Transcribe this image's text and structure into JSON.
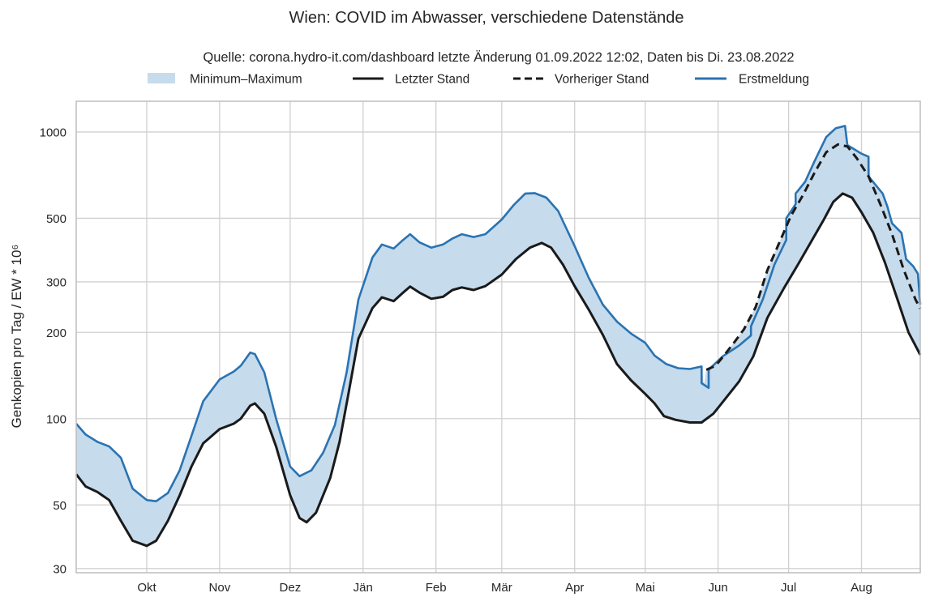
{
  "chart_data": {
    "type": "line",
    "title": "Wien: COVID im Abwasser, verschiedene Datenstände",
    "subtitle": "Quelle: corona.hydro-it.com/dashboard letzte Änderung 01.09.2022 12:02, Daten bis Di. 23.08.2022",
    "ylabel": "Genkopien pro Tag / EW * 10⁶",
    "xlabel": "",
    "y_scale": "log",
    "ylim": [
      29,
      1280
    ],
    "y_ticks": [
      30,
      50,
      100,
      200,
      300,
      500,
      1000
    ],
    "y_tick_labels": [
      "30",
      "50",
      "100",
      "200",
      "300",
      "500",
      "1000"
    ],
    "x_range": [
      "2021-09-01",
      "2022-08-26"
    ],
    "x_ticks": [
      {
        "date": "2021-10-01",
        "label": "Okt"
      },
      {
        "date": "2021-11-01",
        "label": "Nov"
      },
      {
        "date": "2021-12-01",
        "label": "Dez"
      },
      {
        "date": "2022-01-01",
        "label": "Jän"
      },
      {
        "date": "2022-02-01",
        "label": "Feb"
      },
      {
        "date": "2022-03-01",
        "label": "Mär"
      },
      {
        "date": "2022-04-01",
        "label": "Apr"
      },
      {
        "date": "2022-05-01",
        "label": "Mai"
      },
      {
        "date": "2022-06-01",
        "label": "Jun"
      },
      {
        "date": "2022-07-01",
        "label": "Jul"
      },
      {
        "date": "2022-08-01",
        "label": "Aug"
      }
    ],
    "grid": true,
    "legend_position": "top-center",
    "colors": {
      "band": "#c6dbec",
      "latest": "#1a1a1a",
      "previous": "#1a1a1a",
      "first": "#2a73b2"
    },
    "legend": [
      {
        "key": "band",
        "label": "Minimum–Maximum"
      },
      {
        "key": "latest",
        "label": "Letzter Stand"
      },
      {
        "key": "previous",
        "label": "Vorheriger Stand"
      },
      {
        "key": "first",
        "label": "Erstmeldung"
      }
    ],
    "series": [
      {
        "name": "Letzter Stand",
        "key": "latest",
        "style": "solid",
        "points": [
          [
            "2021-09-01",
            64
          ],
          [
            "2021-09-05",
            58
          ],
          [
            "2021-09-10",
            55.5
          ],
          [
            "2021-09-15",
            52
          ],
          [
            "2021-09-20",
            44
          ],
          [
            "2021-09-25",
            37.5
          ],
          [
            "2021-10-01",
            36
          ],
          [
            "2021-10-05",
            37.5
          ],
          [
            "2021-10-10",
            44
          ],
          [
            "2021-10-15",
            54
          ],
          [
            "2021-10-20",
            68
          ],
          [
            "2021-10-25",
            82
          ],
          [
            "2021-11-01",
            92
          ],
          [
            "2021-11-07",
            96
          ],
          [
            "2021-11-10",
            100
          ],
          [
            "2021-11-14",
            111
          ],
          [
            "2021-11-16",
            113
          ],
          [
            "2021-11-20",
            104
          ],
          [
            "2021-11-25",
            80
          ],
          [
            "2021-12-01",
            54
          ],
          [
            "2021-12-05",
            45
          ],
          [
            "2021-12-08",
            43.5
          ],
          [
            "2021-12-12",
            47
          ],
          [
            "2021-12-18",
            62
          ],
          [
            "2021-12-22",
            83
          ],
          [
            "2021-12-26",
            125
          ],
          [
            "2021-12-30",
            190
          ],
          [
            "2022-01-05",
            243
          ],
          [
            "2022-01-09",
            265
          ],
          [
            "2022-01-14",
            257
          ],
          [
            "2022-01-18",
            275
          ],
          [
            "2022-01-21",
            289
          ],
          [
            "2022-01-25",
            275
          ],
          [
            "2022-01-30",
            262
          ],
          [
            "2022-02-04",
            266
          ],
          [
            "2022-02-08",
            281
          ],
          [
            "2022-02-12",
            287
          ],
          [
            "2022-02-17",
            281
          ],
          [
            "2022-02-22",
            290
          ],
          [
            "2022-03-01",
            318
          ],
          [
            "2022-03-07",
            360
          ],
          [
            "2022-03-13",
            395
          ],
          [
            "2022-03-18",
            410
          ],
          [
            "2022-03-22",
            395
          ],
          [
            "2022-03-27",
            345
          ],
          [
            "2022-04-01",
            290
          ],
          [
            "2022-04-07",
            240
          ],
          [
            "2022-04-13",
            196
          ],
          [
            "2022-04-19",
            155
          ],
          [
            "2022-04-25",
            136
          ],
          [
            "2022-05-01",
            122
          ],
          [
            "2022-05-05",
            113
          ],
          [
            "2022-05-09",
            102
          ],
          [
            "2022-05-14",
            99
          ],
          [
            "2022-05-20",
            97
          ],
          [
            "2022-05-25",
            97
          ],
          [
            "2022-05-30",
            104
          ],
          [
            "2022-06-04",
            117
          ],
          [
            "2022-06-10",
            135
          ],
          [
            "2022-06-16",
            165
          ],
          [
            "2022-06-22",
            225
          ],
          [
            "2022-06-29",
            285
          ],
          [
            "2022-07-05",
            345
          ],
          [
            "2022-07-11",
            420
          ],
          [
            "2022-07-16",
            495
          ],
          [
            "2022-07-20",
            570
          ],
          [
            "2022-07-24",
            610
          ],
          [
            "2022-07-28",
            590
          ],
          [
            "2022-08-01",
            525
          ],
          [
            "2022-08-06",
            445
          ],
          [
            "2022-08-11",
            350
          ],
          [
            "2022-08-16",
            265
          ],
          [
            "2022-08-21",
            200
          ],
          [
            "2022-08-26",
            167
          ]
        ]
      },
      {
        "name": "Vorheriger Stand",
        "key": "previous",
        "style": "dashed",
        "points": [
          [
            "2022-05-27",
            148
          ],
          [
            "2022-05-31",
            153
          ],
          [
            "2022-06-04",
            168
          ],
          [
            "2022-06-08",
            185
          ],
          [
            "2022-06-12",
            205
          ],
          [
            "2022-06-17",
            245
          ],
          [
            "2022-06-22",
            330
          ],
          [
            "2022-06-27",
            410
          ],
          [
            "2022-07-02",
            510
          ],
          [
            "2022-07-07",
            600
          ],
          [
            "2022-07-12",
            720
          ],
          [
            "2022-07-17",
            850
          ],
          [
            "2022-07-22",
            905
          ],
          [
            "2022-07-26",
            890
          ],
          [
            "2022-07-30",
            810
          ],
          [
            "2022-08-04",
            700
          ],
          [
            "2022-08-09",
            560
          ],
          [
            "2022-08-14",
            440
          ],
          [
            "2022-08-19",
            330
          ],
          [
            "2022-08-24",
            260
          ],
          [
            "2022-08-26",
            242
          ]
        ]
      },
      {
        "name": "Erstmeldung",
        "key": "first",
        "style": "solid",
        "points": [
          [
            "2021-09-01",
            96
          ],
          [
            "2021-09-05",
            88
          ],
          [
            "2021-09-10",
            83
          ],
          [
            "2021-09-15",
            80
          ],
          [
            "2021-09-20",
            73
          ],
          [
            "2021-09-25",
            57
          ],
          [
            "2021-10-01",
            52
          ],
          [
            "2021-10-05",
            51.5
          ],
          [
            "2021-10-10",
            55
          ],
          [
            "2021-10-15",
            66
          ],
          [
            "2021-10-20",
            87
          ],
          [
            "2021-10-25",
            115
          ],
          [
            "2021-11-01",
            137
          ],
          [
            "2021-11-07",
            146
          ],
          [
            "2021-11-10",
            153
          ],
          [
            "2021-11-14",
            170
          ],
          [
            "2021-11-16",
            168
          ],
          [
            "2021-11-20",
            145
          ],
          [
            "2021-11-25",
            100
          ],
          [
            "2021-12-01",
            68
          ],
          [
            "2021-12-05",
            63
          ],
          [
            "2021-12-10",
            66
          ],
          [
            "2021-12-15",
            76
          ],
          [
            "2021-12-20",
            95
          ],
          [
            "2021-12-25",
            145
          ],
          [
            "2021-12-30",
            260
          ],
          [
            "2022-01-05",
            365
          ],
          [
            "2022-01-09",
            405
          ],
          [
            "2022-01-14",
            392
          ],
          [
            "2022-01-18",
            420
          ],
          [
            "2022-01-21",
            440
          ],
          [
            "2022-01-25",
            412
          ],
          [
            "2022-01-30",
            395
          ],
          [
            "2022-02-04",
            405
          ],
          [
            "2022-02-08",
            425
          ],
          [
            "2022-02-12",
            440
          ],
          [
            "2022-02-17",
            430
          ],
          [
            "2022-02-22",
            440
          ],
          [
            "2022-03-01",
            495
          ],
          [
            "2022-03-06",
            555
          ],
          [
            "2022-03-11",
            610
          ],
          [
            "2022-03-15",
            612
          ],
          [
            "2022-03-20",
            590
          ],
          [
            "2022-03-25",
            530
          ],
          [
            "2022-04-01",
            400
          ],
          [
            "2022-04-07",
            310
          ],
          [
            "2022-04-13",
            250
          ],
          [
            "2022-04-19",
            218
          ],
          [
            "2022-04-25",
            198
          ],
          [
            "2022-05-01",
            184
          ],
          [
            "2022-05-05",
            166
          ],
          [
            "2022-05-10",
            155
          ],
          [
            "2022-05-15",
            150
          ],
          [
            "2022-05-20",
            149
          ],
          [
            "2022-05-25",
            152
          ],
          [
            "2022-05-25",
            133
          ],
          [
            "2022-05-28",
            128
          ],
          [
            "2022-05-28",
            148
          ],
          [
            "2022-06-03",
            165
          ],
          [
            "2022-06-10",
            180
          ],
          [
            "2022-06-15",
            195
          ],
          [
            "2022-06-15",
            210
          ],
          [
            "2022-06-20",
            260
          ],
          [
            "2022-06-25",
            345
          ],
          [
            "2022-06-30",
            420
          ],
          [
            "2022-06-30",
            500
          ],
          [
            "2022-07-04",
            560
          ],
          [
            "2022-07-04",
            610
          ],
          [
            "2022-07-08",
            670
          ],
          [
            "2022-07-12",
            790
          ],
          [
            "2022-07-17",
            960
          ],
          [
            "2022-07-21",
            1030
          ],
          [
            "2022-07-25",
            1050
          ],
          [
            "2022-07-26",
            900
          ],
          [
            "2022-08-01",
            840
          ],
          [
            "2022-08-04",
            820
          ],
          [
            "2022-08-04",
            700
          ],
          [
            "2022-08-10",
            610
          ],
          [
            "2022-08-12",
            550
          ],
          [
            "2022-08-14",
            480
          ],
          [
            "2022-08-18",
            445
          ],
          [
            "2022-08-20",
            360
          ],
          [
            "2022-08-23",
            340
          ],
          [
            "2022-08-25",
            320
          ],
          [
            "2022-08-26",
            250
          ]
        ]
      }
    ]
  }
}
